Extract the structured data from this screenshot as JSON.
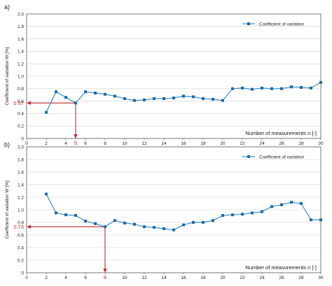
{
  "chart_data": [
    {
      "type": "line",
      "panel_label": "a)",
      "xlabel": "Number of measurements n [-]",
      "ylabel": "Coefficient of variation W [%]",
      "xlim": [
        0,
        30
      ],
      "ylim": [
        0,
        2.0
      ],
      "x_ticks": [
        "0",
        "2",
        "4",
        "5",
        "6",
        "8",
        "10",
        "12",
        "14",
        "16",
        "18",
        "20",
        "22",
        "24",
        "26",
        "28",
        "30"
      ],
      "y_ticks": [
        "0",
        "0.2",
        "0.4",
        "0.6",
        "0.8",
        "1.0",
        "1.2",
        "1.4",
        "1.6",
        "1.8",
        "2.0"
      ],
      "grid": true,
      "legend_position": "top-right",
      "series": [
        {
          "name": "Coefficient of variation",
          "x": [
            2,
            3,
            4,
            5,
            6,
            7,
            8,
            9,
            10,
            11,
            12,
            13,
            14,
            15,
            16,
            17,
            18,
            19,
            20,
            21,
            22,
            23,
            24,
            25,
            26,
            27,
            28,
            29,
            30
          ],
          "y": [
            0.42,
            0.75,
            0.66,
            0.57,
            0.75,
            0.73,
            0.71,
            0.68,
            0.64,
            0.61,
            0.62,
            0.64,
            0.64,
            0.65,
            0.68,
            0.67,
            0.64,
            0.63,
            0.61,
            0.8,
            0.81,
            0.79,
            0.81,
            0.8,
            0.8,
            0.83,
            0.82,
            0.81,
            0.9
          ]
        }
      ],
      "annotation": {
        "x": 5,
        "y": 0.57,
        "x_label": "5",
        "y_label": "0.57"
      }
    },
    {
      "type": "line",
      "panel_label": "b)",
      "xlabel": "Number of measurements n [-]",
      "ylabel": "Coefficient of variation W [%]",
      "xlim": [
        0,
        30
      ],
      "ylim": [
        0,
        2.0
      ],
      "x_ticks": [
        "0",
        "2",
        "4",
        "6",
        "8",
        "10",
        "12",
        "14",
        "16",
        "18",
        "20",
        "22",
        "24",
        "26",
        "28",
        "30"
      ],
      "y_ticks": [
        "0",
        "0.2",
        "0.4",
        "0.6",
        "0.8",
        "1.0",
        "1.2",
        "1.4",
        "1.6",
        "1.8",
        "2.0"
      ],
      "grid": true,
      "legend_position": "top-right",
      "series": [
        {
          "name": "Coefficient of variation",
          "x": [
            2,
            3,
            4,
            5,
            6,
            7,
            8,
            9,
            10,
            11,
            12,
            13,
            14,
            15,
            16,
            17,
            18,
            19,
            20,
            21,
            22,
            23,
            24,
            25,
            26,
            27,
            28,
            29,
            30
          ],
          "y": [
            1.25,
            0.95,
            0.92,
            0.91,
            0.82,
            0.78,
            0.73,
            0.83,
            0.79,
            0.77,
            0.73,
            0.72,
            0.7,
            0.68,
            0.76,
            0.8,
            0.8,
            0.83,
            0.91,
            0.92,
            0.93,
            0.95,
            0.97,
            1.05,
            1.08,
            1.12,
            1.1,
            0.84,
            0.84
          ]
        }
      ],
      "annotation": {
        "x": 8,
        "y": 0.73,
        "x_label": "8",
        "y_label": "0.73"
      }
    }
  ],
  "colors": {
    "series": "#3a8fc2",
    "marker": "#1f6aa5",
    "annotation": "#c0282d",
    "grid": "#cfcfcf",
    "axis": "#555555"
  }
}
